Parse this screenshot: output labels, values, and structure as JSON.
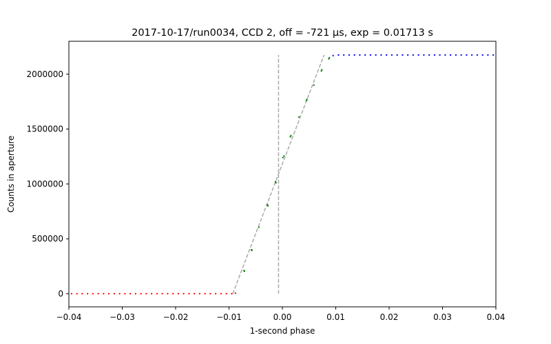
{
  "chart_data": {
    "type": "scatter",
    "title": "2017-10-17/run0034, CCD 2, off = -721 μs, exp = 0.01713 s",
    "xlabel": "1-second phase",
    "ylabel": "Counts in aperture",
    "xlim": [
      -0.04,
      0.04
    ],
    "ylim": [
      -120000,
      2300000
    ],
    "xticks": [
      -0.04,
      -0.03,
      -0.02,
      -0.01,
      0.0,
      0.01,
      0.02,
      0.03,
      0.04
    ],
    "xtick_labels": [
      "−0.04",
      "−0.03",
      "−0.02",
      "−0.01",
      "0.00",
      "0.01",
      "0.02",
      "0.03",
      "0.04"
    ],
    "yticks": [
      0,
      500000,
      1000000,
      1500000,
      2000000
    ],
    "ytick_labels": [
      "0",
      "500000",
      "1000000",
      "1500000",
      "2000000"
    ],
    "grid": false,
    "colors": {
      "low": "#ff0000",
      "ramp": "#008000",
      "high": "#0000ff",
      "fit": "#aaaaaa",
      "marker": "#aaaaaa"
    },
    "series": [
      {
        "color": "#ff0000",
        "x": [
          -0.0395,
          -0.0385,
          -0.0375,
          -0.0365,
          -0.0355,
          -0.0345,
          -0.0335,
          -0.0325,
          -0.0315,
          -0.0305,
          -0.0295,
          -0.0285,
          -0.0275,
          -0.0265,
          -0.0255,
          -0.0245,
          -0.0235,
          -0.0225,
          -0.0215,
          -0.0205,
          -0.0195,
          -0.0185,
          -0.0175,
          -0.0165,
          -0.0155,
          -0.0145,
          -0.0135,
          -0.0125,
          -0.0115,
          -0.0105,
          -0.0095,
          -0.0088
        ],
        "y": [
          0,
          0,
          0,
          0,
          0,
          0,
          0,
          0,
          0,
          0,
          0,
          0,
          0,
          0,
          0,
          0,
          0,
          0,
          0,
          0,
          0,
          0,
          0,
          0,
          0,
          0,
          0,
          0,
          0,
          0,
          0,
          5000
        ]
      },
      {
        "color": "#008000",
        "x": [
          -0.0072,
          -0.0071,
          -0.0058,
          -0.0057,
          -0.0044,
          -0.0028,
          -0.0027,
          -0.0013,
          -0.0012,
          0.0001,
          0.0003,
          0.0015,
          0.0016,
          0.0031,
          0.0045,
          0.0046,
          0.0059,
          0.0073,
          0.0074,
          0.0087,
          0.0088
        ],
        "y": [
          210000,
          205000,
          400000,
          395000,
          605000,
          810000,
          800000,
          1020000,
          1010000,
          1240000,
          1255000,
          1430000,
          1440000,
          1610000,
          1760000,
          1770000,
          1900000,
          2030000,
          2040000,
          2140000,
          2150000
        ]
      },
      {
        "color": "#0000ff",
        "x": [
          0.0095,
          0.0105,
          0.0115,
          0.0125,
          0.0135,
          0.0145,
          0.0155,
          0.0165,
          0.0175,
          0.0185,
          0.0195,
          0.0205,
          0.0215,
          0.0225,
          0.0235,
          0.0245,
          0.0255,
          0.0265,
          0.0275,
          0.0285,
          0.0295,
          0.0305,
          0.0315,
          0.0325,
          0.0335,
          0.0345,
          0.0355,
          0.0365,
          0.0375,
          0.0385,
          0.0395
        ],
        "y": [
          2170000,
          2175000,
          2175000,
          2175000,
          2175000,
          2175000,
          2175000,
          2175000,
          2175000,
          2175000,
          2175000,
          2175000,
          2175000,
          2175000,
          2175000,
          2175000,
          2175000,
          2175000,
          2175000,
          2175000,
          2175000,
          2175000,
          2175000,
          2175000,
          2175000,
          2175000,
          2175000,
          2175000,
          2175000,
          2175000,
          2175000
        ]
      }
    ],
    "fit_line": {
      "x": [
        -0.0093,
        0.0078
      ],
      "y": [
        0,
        2175000
      ]
    },
    "vertical_marker": {
      "x": -0.00072,
      "y": [
        0,
        2175000
      ]
    }
  }
}
